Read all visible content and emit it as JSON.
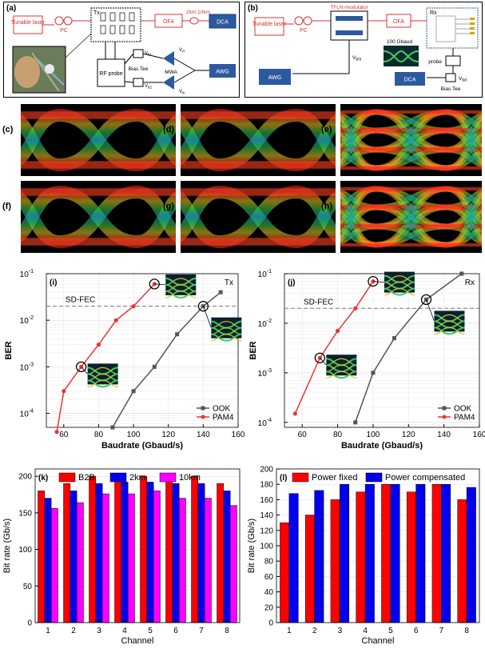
{
  "setup_a": {
    "label": "(a)",
    "laser": "Tunable laser",
    "pc": "PC",
    "tx": "Tx",
    "ofa": "OFA",
    "fiber": "2km,10km",
    "dca": "DCA",
    "rf_probe": "RF probe",
    "bias_tee": "Bias Tee",
    "mwa": "MWA",
    "awg": "AWG",
    "v_rf": "V",
    "v_rf_sub": "rf",
    "v_ln": "V",
    "v_ln_sub": "ln",
    "v_b1": "V",
    "v_b1_sub": "b1",
    "v_b2": "V",
    "v_b2_sub": "b2"
  },
  "setup_b": {
    "label": "(b)",
    "laser": "Tunable laser",
    "pc": "PC",
    "modulator": "TFLN-modulator",
    "ofa": "OFA",
    "rx": "Rx",
    "gbaud": "100 Gbaud",
    "vbm": "V",
    "vbm_sub": "bm",
    "awg": "AWG",
    "probe": "probe",
    "vbd": "V",
    "vbd_sub": "bd",
    "bias_tee": "Bias Tee",
    "dca": "DCA"
  },
  "eyes": [
    {
      "label": "(c)",
      "type": "ook"
    },
    {
      "label": "(d)",
      "type": "ook"
    },
    {
      "label": "(e)",
      "type": "pam4"
    },
    {
      "label": "(f)",
      "type": "ook"
    },
    {
      "label": "(g)",
      "type": "ook"
    },
    {
      "label": "(h)",
      "type": "pam4"
    }
  ],
  "colors": {
    "ook": "#555555",
    "pam4": "#ee3333",
    "red": "#ff0000",
    "blue": "#0000ee",
    "magenta": "#ff00ff",
    "setup_red": "#e03030",
    "setup_blue": "#2c5aa0"
  },
  "chart_data": [
    {
      "panel": "(i)",
      "type": "line",
      "corner_label": "Tx",
      "xlabel": "Baudrate (Gbaud/s)",
      "ylabel": "BER",
      "xlim": [
        50,
        160
      ],
      "xticks": [
        60,
        80,
        100,
        120,
        140,
        160
      ],
      "ylim_log10": [
        -4.3,
        -1
      ],
      "ytick_labels": [
        {
          "base": "10",
          "exp": "-1"
        },
        {
          "base": "10",
          "exp": "-2"
        },
        {
          "base": "10",
          "exp": "-3"
        },
        {
          "base": "10",
          "exp": "-4"
        }
      ],
      "threshold": {
        "label": "SD-FEC",
        "value": 0.02
      },
      "series": [
        {
          "name": "OOK",
          "x": [
            88,
            100,
            112,
            125,
            140,
            150
          ],
          "y": [
            5e-05,
            0.0003,
            0.001,
            0.005,
            0.02,
            0.04
          ]
        },
        {
          "name": "PAM4",
          "x": [
            56,
            60,
            70,
            80,
            90,
            100,
            112
          ],
          "y": [
            4e-05,
            0.0003,
            0.001,
            0.003,
            0.01,
            0.02,
            0.06
          ]
        }
      ],
      "circled": [
        {
          "x": 112,
          "y": 0.06
        },
        {
          "x": 140,
          "y": 0.02
        },
        {
          "x": 70,
          "y": 0.001
        }
      ],
      "legend_position": "bottom-right"
    },
    {
      "panel": "(j)",
      "type": "line",
      "corner_label": "Rx",
      "xlabel": "Baudrate (Gbaud/s)",
      "ylabel": "BER",
      "xlim": [
        50,
        160
      ],
      "xticks": [
        60,
        80,
        100,
        120,
        140,
        160
      ],
      "ylim_log10": [
        -4.1,
        -1
      ],
      "ytick_labels": [
        {
          "base": "10",
          "exp": "-1"
        },
        {
          "base": "10",
          "exp": "-2"
        },
        {
          "base": "10",
          "exp": "-3"
        },
        {
          "base": "10",
          "exp": "-4"
        }
      ],
      "threshold": {
        "label": "SD-FEC",
        "value": 0.02
      },
      "series": [
        {
          "name": "OOK",
          "x": [
            90,
            100,
            112,
            130,
            150
          ],
          "y": [
            0.0001,
            0.001,
            0.005,
            0.03,
            0.1
          ]
        },
        {
          "name": "PAM4",
          "x": [
            56,
            70,
            80,
            90,
            100
          ],
          "y": [
            0.00015,
            0.002,
            0.007,
            0.02,
            0.07
          ]
        }
      ],
      "circled": [
        {
          "x": 100,
          "y": 0.07
        },
        {
          "x": 130,
          "y": 0.03
        },
        {
          "x": 70,
          "y": 0.002
        }
      ],
      "legend_position": "bottom-right"
    },
    {
      "panel": "(k)",
      "type": "bar",
      "xlabel": "Channel",
      "ylabel": "Bit rate (Gb/s)",
      "categories": [
        "1",
        "2",
        "3",
        "4",
        "5",
        "6",
        "7",
        "8"
      ],
      "ylim": [
        0,
        210
      ],
      "yticks": [
        0,
        50,
        100,
        150,
        200
      ],
      "series": [
        {
          "name": "B2B",
          "values": [
            180,
            190,
            200,
            200,
            200,
            200,
            200,
            190
          ]
        },
        {
          "name": "2km",
          "values": [
            170,
            180,
            190,
            192,
            192,
            190,
            190,
            180
          ]
        },
        {
          "name": "10km",
          "values": [
            156,
            164,
            176,
            176,
            180,
            170,
            170,
            160
          ]
        }
      ],
      "legend_position": "top"
    },
    {
      "panel": "(l)",
      "type": "bar",
      "xlabel": "Channel",
      "ylabel": "Bit rate (Gb/s)",
      "categories": [
        "1",
        "2",
        "3",
        "4",
        "5",
        "6",
        "7",
        "8"
      ],
      "ylim": [
        0,
        200
      ],
      "yticks": [
        0,
        20,
        40,
        60,
        80,
        100,
        120,
        140,
        160,
        180,
        200
      ],
      "series": [
        {
          "name": "Power fixed",
          "values": [
            130,
            140,
            160,
            170,
            180,
            170,
            180,
            160
          ]
        },
        {
          "name": "Power compensated",
          "values": [
            168,
            172,
            180,
            180,
            180,
            180,
            180,
            176
          ]
        }
      ],
      "legend_position": "top"
    }
  ]
}
